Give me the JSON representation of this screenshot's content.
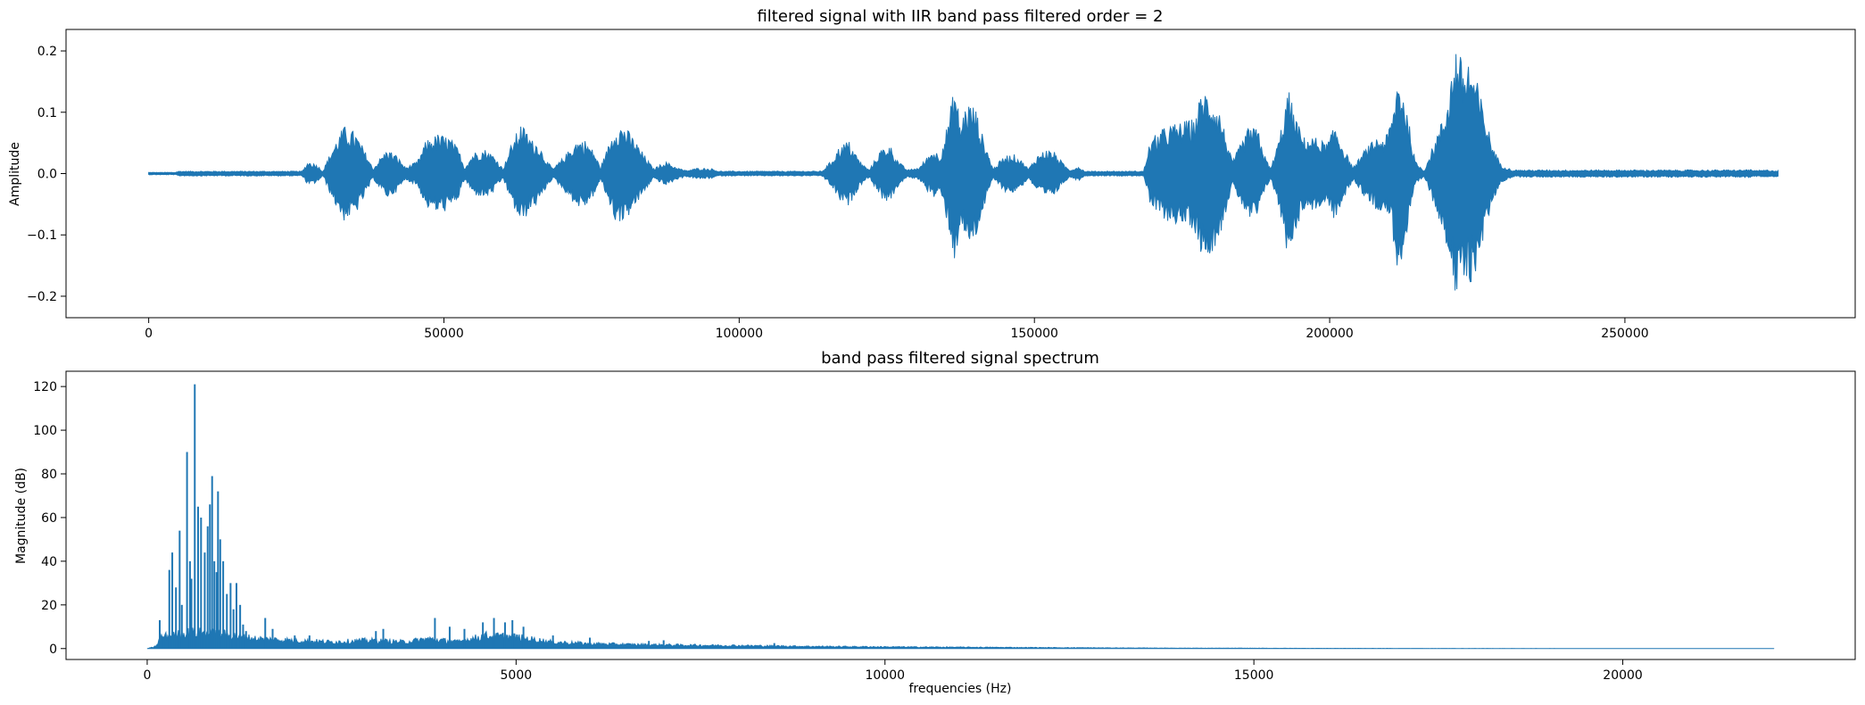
{
  "chart_data": [
    {
      "type": "line",
      "title": "filtered signal with IIR band pass filtered order = 2",
      "xlabel": "",
      "ylabel": "Amplitude",
      "xlim": [
        -14000,
        289000
      ],
      "ylim": [
        -0.235,
        0.235
      ],
      "xticks": [
        {
          "value": 0,
          "label": "0"
        },
        {
          "value": 50000,
          "label": "50000"
        },
        {
          "value": 100000,
          "label": "100000"
        },
        {
          "value": 150000,
          "label": "150000"
        },
        {
          "value": 200000,
          "label": "200000"
        },
        {
          "value": 250000,
          "label": "250000"
        }
      ],
      "yticks": [
        {
          "value": -0.2,
          "label": "−0.2"
        },
        {
          "value": -0.1,
          "label": "−0.1"
        },
        {
          "value": 0.0,
          "label": "0.0"
        },
        {
          "value": 0.1,
          "label": "0.1"
        },
        {
          "value": 0.2,
          "label": "0.2"
        }
      ],
      "color": "#1f77b4",
      "x_end": 276000,
      "envelope": [
        [
          0,
          0.002
        ],
        [
          4500,
          0.002
        ],
        [
          5000,
          0.004
        ],
        [
          20000,
          0.004
        ],
        [
          26000,
          0.004
        ],
        [
          27000,
          0.02
        ],
        [
          28500,
          0.015
        ],
        [
          29500,
          0.004
        ],
        [
          31000,
          0.04
        ],
        [
          33000,
          0.078
        ],
        [
          35000,
          0.068
        ],
        [
          37000,
          0.03
        ],
        [
          38000,
          0.008
        ],
        [
          39500,
          0.03
        ],
        [
          40500,
          0.04
        ],
        [
          42000,
          0.03
        ],
        [
          43500,
          0.01
        ],
        [
          45500,
          0.02
        ],
        [
          47000,
          0.055
        ],
        [
          49000,
          0.065
        ],
        [
          51000,
          0.06
        ],
        [
          52500,
          0.04
        ],
        [
          53500,
          0.01
        ],
        [
          55000,
          0.035
        ],
        [
          57000,
          0.04
        ],
        [
          58500,
          0.03
        ],
        [
          60000,
          0.008
        ],
        [
          61500,
          0.05
        ],
        [
          63000,
          0.082
        ],
        [
          64000,
          0.07
        ],
        [
          65000,
          0.055
        ],
        [
          66000,
          0.05
        ],
        [
          67500,
          0.02
        ],
        [
          68500,
          0.008
        ],
        [
          70500,
          0.03
        ],
        [
          72500,
          0.055
        ],
        [
          74000,
          0.055
        ],
        [
          75500,
          0.035
        ],
        [
          76500,
          0.01
        ],
        [
          78000,
          0.05
        ],
        [
          79000,
          0.078
        ],
        [
          80500,
          0.08
        ],
        [
          82000,
          0.06
        ],
        [
          84000,
          0.03
        ],
        [
          85500,
          0.008
        ],
        [
          87500,
          0.02
        ],
        [
          89500,
          0.01
        ],
        [
          91000,
          0.005
        ],
        [
          93000,
          0.009
        ],
        [
          95500,
          0.008
        ],
        [
          96500,
          0.004
        ],
        [
          114000,
          0.004
        ],
        [
          115500,
          0.02
        ],
        [
          117000,
          0.045
        ],
        [
          118500,
          0.055
        ],
        [
          120500,
          0.02
        ],
        [
          122000,
          0.006
        ],
        [
          124000,
          0.04
        ],
        [
          125500,
          0.048
        ],
        [
          127000,
          0.02
        ],
        [
          128500,
          0.006
        ],
        [
          130500,
          0.01
        ],
        [
          132000,
          0.03
        ],
        [
          133000,
          0.04
        ],
        [
          134000,
          0.03
        ],
        [
          135500,
          0.09
        ],
        [
          136500,
          0.15
        ],
        [
          137500,
          0.08
        ],
        [
          138500,
          0.12
        ],
        [
          140000,
          0.11
        ],
        [
          141000,
          0.07
        ],
        [
          142000,
          0.04
        ],
        [
          143000,
          0.008
        ],
        [
          145000,
          0.03
        ],
        [
          146500,
          0.032
        ],
        [
          148000,
          0.02
        ],
        [
          149000,
          0.008
        ],
        [
          150500,
          0.03
        ],
        [
          152000,
          0.04
        ],
        [
          153500,
          0.035
        ],
        [
          155000,
          0.015
        ],
        [
          156000,
          0.006
        ],
        [
          157500,
          0.012
        ],
        [
          158500,
          0.004
        ],
        [
          168500,
          0.004
        ],
        [
          169500,
          0.05
        ],
        [
          171000,
          0.07
        ],
        [
          173000,
          0.08
        ],
        [
          175000,
          0.085
        ],
        [
          177000,
          0.09
        ],
        [
          178500,
          0.14
        ],
        [
          180000,
          0.13
        ],
        [
          181500,
          0.1
        ],
        [
          182500,
          0.06
        ],
        [
          183500,
          0.02
        ],
        [
          185000,
          0.05
        ],
        [
          186500,
          0.08
        ],
        [
          188000,
          0.07
        ],
        [
          189000,
          0.03
        ],
        [
          190000,
          0.008
        ],
        [
          191500,
          0.06
        ],
        [
          193000,
          0.14
        ],
        [
          194000,
          0.1
        ],
        [
          195500,
          0.06
        ],
        [
          197500,
          0.06
        ],
        [
          199500,
          0.05
        ],
        [
          201000,
          0.08
        ],
        [
          202500,
          0.04
        ],
        [
          204000,
          0.01
        ],
        [
          206000,
          0.04
        ],
        [
          208000,
          0.06
        ],
        [
          209500,
          0.06
        ],
        [
          210500,
          0.09
        ],
        [
          211500,
          0.16
        ],
        [
          212500,
          0.14
        ],
        [
          213500,
          0.08
        ],
        [
          214500,
          0.02
        ],
        [
          216000,
          0.005
        ],
        [
          218000,
          0.06
        ],
        [
          219500,
          0.1
        ],
        [
          220500,
          0.16
        ],
        [
          221500,
          0.215
        ],
        [
          222500,
          0.18
        ],
        [
          223500,
          0.19
        ],
        [
          224500,
          0.17
        ],
        [
          225500,
          0.13
        ],
        [
          226500,
          0.09
        ],
        [
          227500,
          0.05
        ],
        [
          229000,
          0.015
        ],
        [
          231000,
          0.006
        ],
        [
          260000,
          0.006
        ],
        [
          270000,
          0.006
        ],
        [
          271000,
          0.007
        ],
        [
          272000,
          0.005
        ],
        [
          274000,
          0.006
        ],
        [
          276000,
          0.005
        ]
      ]
    },
    {
      "type": "line",
      "title": "band pass filtered signal spectrum",
      "xlabel": "frequencies (Hz)",
      "ylabel": "Magnitude (dB)",
      "xlim": [
        -1100,
        23150
      ],
      "ylim": [
        -5,
        127
      ],
      "xticks": [
        {
          "value": 0,
          "label": "0"
        },
        {
          "value": 5000,
          "label": "5000"
        },
        {
          "value": 10000,
          "label": "10000"
        },
        {
          "value": 15000,
          "label": "15000"
        },
        {
          "value": 20000,
          "label": "20000"
        }
      ],
      "yticks": [
        {
          "value": 0,
          "label": "0"
        },
        {
          "value": 20,
          "label": "20"
        },
        {
          "value": 40,
          "label": "40"
        },
        {
          "value": 60,
          "label": "60"
        },
        {
          "value": 80,
          "label": "80"
        },
        {
          "value": 100,
          "label": "100"
        },
        {
          "value": 120,
          "label": "120"
        }
      ],
      "color": "#1f77b4",
      "x_end": 22050,
      "baseline_envelope": [
        [
          0,
          0
        ],
        [
          50,
          0.5
        ],
        [
          100,
          1
        ],
        [
          130,
          2
        ],
        [
          180,
          7
        ],
        [
          300,
          8
        ],
        [
          600,
          10
        ],
        [
          1000,
          9
        ],
        [
          1300,
          7
        ],
        [
          1500,
          6
        ],
        [
          2000,
          5
        ],
        [
          2500,
          4
        ],
        [
          3000,
          5
        ],
        [
          3500,
          4
        ],
        [
          3800,
          6
        ],
        [
          4200,
          4
        ],
        [
          4600,
          8
        ],
        [
          5000,
          7
        ],
        [
          5500,
          4
        ],
        [
          6000,
          3
        ],
        [
          6500,
          2.5
        ],
        [
          7000,
          2.2
        ],
        [
          8000,
          1.8
        ],
        [
          9000,
          1.3
        ],
        [
          10000,
          1
        ],
        [
          11000,
          0.8
        ],
        [
          12000,
          0.6
        ],
        [
          13000,
          0.4
        ],
        [
          14000,
          0.25
        ],
        [
          16000,
          0.12
        ],
        [
          18000,
          0.06
        ],
        [
          20000,
          0.04
        ],
        [
          22050,
          0.03
        ]
      ],
      "peaks": [
        [
          170,
          13
        ],
        [
          220,
          5
        ],
        [
          300,
          36
        ],
        [
          340,
          44
        ],
        [
          390,
          28
        ],
        [
          440,
          54
        ],
        [
          470,
          20
        ],
        [
          540,
          90
        ],
        [
          580,
          40
        ],
        [
          600,
          32
        ],
        [
          645,
          121
        ],
        [
          690,
          65
        ],
        [
          730,
          60
        ],
        [
          780,
          44
        ],
        [
          820,
          56
        ],
        [
          850,
          66
        ],
        [
          880,
          79
        ],
        [
          910,
          40
        ],
        [
          940,
          35
        ],
        [
          960,
          72
        ],
        [
          990,
          50
        ],
        [
          1030,
          40
        ],
        [
          1080,
          25
        ],
        [
          1130,
          30
        ],
        [
          1170,
          18
        ],
        [
          1210,
          30
        ],
        [
          1260,
          20
        ],
        [
          1300,
          11
        ],
        [
          1340,
          8
        ],
        [
          1600,
          14
        ],
        [
          1700,
          9
        ],
        [
          2000,
          6
        ],
        [
          2200,
          6
        ],
        [
          3100,
          8
        ],
        [
          3200,
          9
        ],
        [
          3900,
          14
        ],
        [
          4100,
          10
        ],
        [
          4300,
          9
        ],
        [
          4550,
          12
        ],
        [
          4700,
          14
        ],
        [
          4850,
          12
        ],
        [
          4950,
          13
        ],
        [
          5100,
          10
        ],
        [
          5500,
          6
        ],
        [
          6000,
          5
        ],
        [
          6800,
          3.5
        ],
        [
          7000,
          3.8
        ],
        [
          8500,
          2.5
        ]
      ]
    }
  ]
}
